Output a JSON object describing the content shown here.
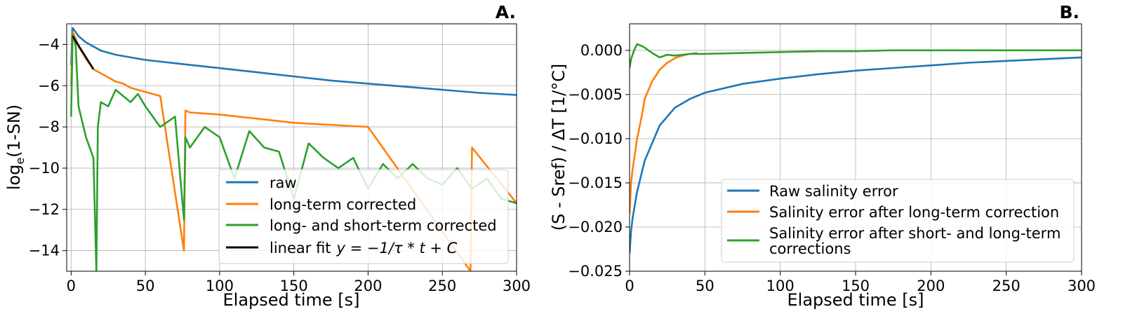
{
  "chart_data": [
    {
      "type": "line",
      "panel_label": "A.",
      "xlabel": "Elapsed time [s]",
      "ylabel_main": "log",
      "ylabel_sub": "e",
      "ylabel_rest": "(1-SN)",
      "xlim": [
        -3,
        300
      ],
      "ylim": [
        -15,
        -3
      ],
      "xticks": [
        0,
        50,
        100,
        150,
        200,
        250,
        300
      ],
      "yticks": [
        -4,
        -6,
        -8,
        -10,
        -12,
        -14
      ],
      "ytick_labels": [
        "−4",
        "−6",
        "−8",
        "−10",
        "−12",
        "−14"
      ],
      "grid": true,
      "legend_position": "lower-right",
      "series": [
        {
          "name": "raw",
          "color": "#1f77b4",
          "x": [
            0,
            1,
            2,
            5,
            10,
            20,
            30,
            50,
            75,
            100,
            125,
            150,
            175,
            200,
            225,
            250,
            275,
            300
          ],
          "y": [
            -5.0,
            -3.2,
            -3.3,
            -3.6,
            -3.9,
            -4.3,
            -4.5,
            -4.75,
            -4.95,
            -5.15,
            -5.35,
            -5.55,
            -5.75,
            -5.9,
            -6.05,
            -6.2,
            -6.35,
            -6.45
          ]
        },
        {
          "name": "long-term corrected",
          "color": "#ff7f0e",
          "x": [
            0,
            1,
            3,
            5,
            10,
            15,
            20,
            25,
            30,
            35,
            40,
            45,
            50,
            60,
            76,
            77,
            80,
            100,
            150,
            200,
            269,
            270,
            300
          ],
          "y": [
            -6.0,
            -3.4,
            -3.7,
            -4.1,
            -4.7,
            -5.2,
            -5.4,
            -5.6,
            -5.8,
            -5.9,
            -6.1,
            -6.2,
            -6.3,
            -6.5,
            -14.0,
            -7.2,
            -7.3,
            -7.4,
            -7.8,
            -8.0,
            -15.0,
            -9.0,
            -11.7
          ]
        },
        {
          "name": "long- and short-term corrected",
          "color": "#2ca02c",
          "x": [
            0,
            1,
            3,
            5,
            10,
            15,
            17,
            18,
            20,
            25,
            30,
            35,
            40,
            45,
            50,
            60,
            70,
            76,
            77,
            80,
            90,
            100,
            110,
            120,
            130,
            140,
            150,
            160,
            170,
            180,
            190,
            200,
            210,
            220,
            230,
            240,
            250,
            260,
            270,
            280,
            290,
            300
          ],
          "y": [
            -7.5,
            -3.5,
            -4.0,
            -7.0,
            -8.5,
            -9.5,
            -15.0,
            -8.0,
            -6.8,
            -7.0,
            -6.2,
            -6.5,
            -6.8,
            -6.4,
            -7.0,
            -8.0,
            -7.5,
            -12.5,
            -8.5,
            -9.0,
            -8.0,
            -8.5,
            -10.5,
            -8.2,
            -9.0,
            -9.2,
            -11.5,
            -8.8,
            -9.5,
            -10.0,
            -9.5,
            -11.0,
            -9.8,
            -10.5,
            -9.8,
            -10.5,
            -10.8,
            -10.0,
            -11.0,
            -10.5,
            -11.5,
            -11.7
          ]
        },
        {
          "name": "linear fit",
          "legend_suffix": "y = −1/τ * t + C",
          "color": "#000000",
          "x": [
            1,
            15
          ],
          "y": [
            -3.6,
            -5.2
          ]
        }
      ]
    },
    {
      "type": "line",
      "panel_label": "B.",
      "xlabel": "Elapsed time [s]",
      "ylabel": "(S - Sref) / ΔT [1/°C]",
      "xlim": [
        0,
        300
      ],
      "ylim": [
        -0.025,
        0.003
      ],
      "xticks": [
        0,
        50,
        100,
        150,
        200,
        250,
        300
      ],
      "yticks": [
        0.0,
        -0.005,
        -0.01,
        -0.015,
        -0.02,
        -0.025
      ],
      "ytick_labels": [
        "0.000",
        "−0.005",
        "−0.010",
        "−0.015",
        "−0.020",
        "−0.025"
      ],
      "grid": true,
      "legend_position": "lower-right",
      "series": [
        {
          "name": "Raw salinity error",
          "color": "#1f77b4",
          "x": [
            0,
            1,
            2,
            5,
            10,
            15,
            20,
            30,
            40,
            50,
            75,
            100,
            125,
            150,
            175,
            200,
            225,
            250,
            275,
            300
          ],
          "y": [
            -0.023,
            -0.0205,
            -0.019,
            -0.016,
            -0.0125,
            -0.0105,
            -0.0085,
            -0.0065,
            -0.0055,
            -0.0048,
            -0.0038,
            -0.0032,
            -0.0027,
            -0.0023,
            -0.002,
            -0.0017,
            -0.0014,
            -0.0012,
            -0.001,
            -0.0008
          ]
        },
        {
          "name": "Salinity error after long-term correction",
          "color": "#ff7f0e",
          "x": [
            0,
            1,
            2,
            5,
            8,
            10,
            15,
            20,
            25,
            30,
            35,
            40,
            45
          ],
          "y": [
            -0.0185,
            -0.015,
            -0.0135,
            -0.01,
            -0.0075,
            -0.0055,
            -0.0035,
            -0.0022,
            -0.0014,
            -0.0009,
            -0.0006,
            -0.0004,
            -0.0003
          ]
        },
        {
          "name": "Salinity error after short- and long-term corrections",
          "name_line1": "Salinity error after short- and long-term",
          "name_line2": "corrections",
          "color": "#2ca02c",
          "x": [
            0,
            1,
            3,
            5,
            8,
            10,
            15,
            20,
            25,
            30,
            40,
            50,
            75,
            100,
            125,
            150,
            175,
            200,
            225,
            250,
            275,
            300
          ],
          "y": [
            -0.002,
            -0.001,
            0.0,
            0.0007,
            0.0005,
            0.0003,
            -0.0003,
            -0.0008,
            -0.0005,
            -0.0006,
            -0.0004,
            -0.0004,
            -0.0003,
            -0.0002,
            -0.0001,
            -0.0001,
            0.0,
            0.0,
            0.0,
            0.0,
            0.0,
            0.0
          ]
        }
      ]
    }
  ]
}
